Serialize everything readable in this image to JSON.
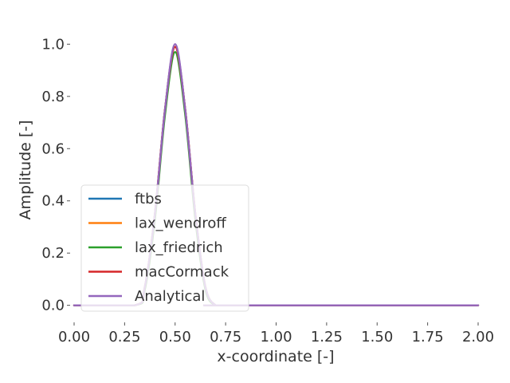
{
  "chart_data": {
    "type": "line",
    "title": "",
    "xlabel": "x-coordinate [-]",
    "ylabel": "Amplitude [-]",
    "xlim": [
      0.0,
      2.0
    ],
    "ylim": [
      -0.05,
      1.05
    ],
    "x_ticks": [
      "0.00",
      "0.25",
      "0.50",
      "0.75",
      "1.00",
      "1.25",
      "1.50",
      "1.75",
      "2.00"
    ],
    "y_ticks": [
      "0.0",
      "0.2",
      "0.4",
      "0.6",
      "0.8",
      "1.0"
    ],
    "grid": false,
    "legend_position": "lower-left",
    "x": [
      0.0,
      0.3,
      0.35,
      0.4,
      0.45,
      0.5,
      0.55,
      0.6,
      0.65,
      0.7,
      0.75,
      2.0
    ],
    "series": [
      {
        "name": "ftbs",
        "color": "#1f77b4",
        "values": [
          0.0,
          0.0,
          0.07,
          0.35,
          0.75,
          0.99,
          0.75,
          0.35,
          0.07,
          0.0,
          0.0,
          0.0
        ]
      },
      {
        "name": "lax_wendroff",
        "color": "#ff7f0e",
        "values": [
          0.0,
          0.0,
          0.07,
          0.35,
          0.75,
          0.99,
          0.75,
          0.35,
          0.07,
          0.0,
          0.0,
          0.0
        ]
      },
      {
        "name": "lax_friedrich",
        "color": "#2ca02c",
        "values": [
          0.0,
          0.0,
          0.06,
          0.33,
          0.73,
          0.97,
          0.73,
          0.33,
          0.06,
          0.0,
          0.0,
          0.0
        ]
      },
      {
        "name": "macCormack",
        "color": "#d62728",
        "values": [
          0.0,
          0.0,
          0.07,
          0.35,
          0.75,
          0.99,
          0.75,
          0.35,
          0.07,
          0.0,
          0.0,
          0.0
        ]
      },
      {
        "name": "Analytical",
        "color": "#9467bd",
        "values": [
          0.0,
          0.0,
          0.07,
          0.35,
          0.75,
          1.0,
          0.75,
          0.35,
          0.07,
          0.0,
          0.0,
          0.0
        ]
      }
    ]
  }
}
